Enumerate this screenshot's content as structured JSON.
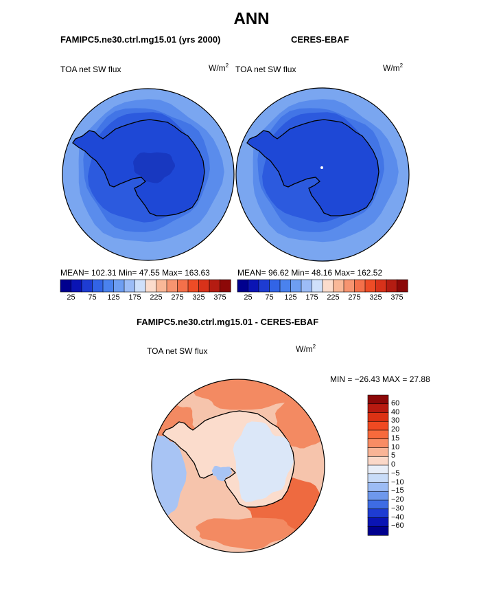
{
  "title": "ANN",
  "panels": [
    {
      "subtitle": "FAMIPC5.ne30.ctrl.mg15.01 (yrs 2000)",
      "variable": "TOA net SW flux",
      "units": "W/m",
      "units_exp": "2",
      "stats": "MEAN= 102.31   Min=   47.55   Max= 163.63"
    },
    {
      "subtitle": "CERES-EBAF",
      "variable": "TOA net SW flux",
      "units": "W/m",
      "units_exp": "2",
      "stats": "MEAN=  96.62   Min=   48.16   Max= 162.52"
    }
  ],
  "diff_panel": {
    "subtitle": "FAMIPC5.ne30.ctrl.mg15.01 - CERES-EBAF",
    "variable": "TOA net SW flux",
    "units": "W/m",
    "units_exp": "2",
    "minmax": "MIN = −26.43 MAX =   27.88"
  },
  "abs_colorbar": {
    "tick_labels": [
      "25",
      "75",
      "125",
      "175",
      "225",
      "275",
      "325",
      "375"
    ],
    "colors": [
      "#00008e",
      "#0a14b4",
      "#1e3cd2",
      "#3264e6",
      "#4a82ee",
      "#6e9ef2",
      "#9cbcf6",
      "#cfe0fa",
      "#fbdccc",
      "#f9b898",
      "#f79470",
      "#f4704a",
      "#ee4c26",
      "#d8321a",
      "#b41c12",
      "#8c0808"
    ]
  },
  "diff_colorbar": {
    "labels": [
      "60",
      "40",
      "30",
      "20",
      "15",
      "10",
      "5",
      "0",
      "−5",
      "−10",
      "−15",
      "−20",
      "−30",
      "−40",
      "−60"
    ],
    "colors": [
      "#8c0808",
      "#b81a10",
      "#dc3214",
      "#f04a22",
      "#f76a3c",
      "#f88c64",
      "#f9b496",
      "#fbd8c8",
      "#e8eef8",
      "#c8dcf8",
      "#9cbcf4",
      "#6e98ec",
      "#3e6ce4",
      "#1e3cd2",
      "#0a14b4",
      "#00008e"
    ]
  },
  "map_colors": {
    "model": [
      "#7aa6f0",
      "#5a8cec",
      "#4275e6",
      "#2c5ade",
      "#1e48d6",
      "#1838c0"
    ],
    "obs": [
      "#7aa6f0",
      "#5a8cec",
      "#4275e6",
      "#2c5ade",
      "#1e48d6",
      "#1a3ecc"
    ],
    "diff_base": "#f6c4ac",
    "diff_warm": "#f38a62",
    "diff_hot": "#ee6a40",
    "diff_cool": "#a8c4f4",
    "diff_pale": "#dbe7f8",
    "diff_land": "#fbdccc",
    "coast": "#000000",
    "outline": "#000000"
  }
}
